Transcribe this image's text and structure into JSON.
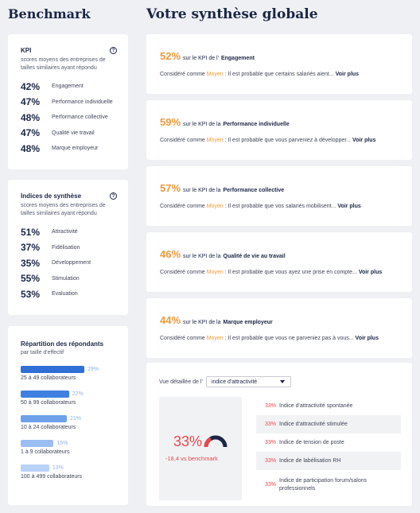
{
  "headings": {
    "left": "Benchmark",
    "right": "Votre synthèse globale"
  },
  "kpi_card": {
    "title": "KPI",
    "help": "?",
    "subtitle": "scores moyens des entreprises de tailles similaires ayant répondu",
    "items": [
      {
        "pct": "42%",
        "label": "Engagement"
      },
      {
        "pct": "47%",
        "label": "Performance individuelle"
      },
      {
        "pct": "48%",
        "label": "Performance collective"
      },
      {
        "pct": "47%",
        "label": "Qualité vie travail"
      },
      {
        "pct": "48%",
        "label": "Marque employeur"
      }
    ]
  },
  "indices_card": {
    "title": "Indices de synthèse",
    "help": "?",
    "subtitle": "scores moyens des entreprises de tailles similaires ayant répondu",
    "items": [
      {
        "pct": "51%",
        "label": "Attractivité"
      },
      {
        "pct": "37%",
        "label": "Fidélisation"
      },
      {
        "pct": "35%",
        "label": "Développement"
      },
      {
        "pct": "55%",
        "label": "Stimulation"
      },
      {
        "pct": "53%",
        "label": "Evaluation"
      }
    ]
  },
  "respondents": {
    "title": "Répartition des répondants",
    "subtitle": "par taille d'effectif",
    "items": [
      {
        "pct": "29%",
        "value": 29,
        "label": "25 à 49 collaborateurs",
        "color": "#2f6fd6"
      },
      {
        "pct": "22%",
        "value": 22,
        "label": "50 à 99 collaborateurs",
        "color": "#3f80e0"
      },
      {
        "pct": "21%",
        "value": 21,
        "label": "10 à 24 collaborateurs",
        "color": "#6fa1ea"
      },
      {
        "pct": "15%",
        "value": 15,
        "label": "1 à 9 collaborateurs",
        "color": "#9bbef2"
      },
      {
        "pct": "13%",
        "value": 13,
        "label": "100 à 499 collaborateurs",
        "color": "#b9d2f7"
      }
    ]
  },
  "summaries": [
    {
      "pct": "52%",
      "prefix": "sur le KPI de l'",
      "kpi": "Engagement",
      "considered": "Considéré comme ",
      "level": "Moyen",
      "text": " : Il est probable que certains salariés aient... ",
      "more": "Voir plus"
    },
    {
      "pct": "59%",
      "prefix": "sur le KPI de la",
      "kpi": "Performance individuelle",
      "considered": "Considéré comme ",
      "level": "Moyen",
      "text": " : Il est probable que vous parveniez à développer... ",
      "more": "Voir plus"
    },
    {
      "pct": "57%",
      "prefix": "sur le KPI de la",
      "kpi": "Performance collective",
      "considered": "Considéré comme ",
      "level": "Moyen",
      "text": " : Il est probable que vos salariés mobilisent... ",
      "more": "Voir plus"
    },
    {
      "pct": "46%",
      "prefix": "sur le KPI de la",
      "kpi": "Qualité de vie au travail",
      "considered": "Considéré comme ",
      "level": "Moyen",
      "text": " : Il est probable que vous ayez une prise en compte... ",
      "more": "Voir plus"
    },
    {
      "pct": "44%",
      "prefix": "sur le KPI de la",
      "kpi": "Marque employeur",
      "considered": "Considéré comme ",
      "level": "Moyen",
      "text": " : Il est probable que vous ne parveniez pas à vous... ",
      "more": "Voir plus"
    }
  ],
  "detail": {
    "label": "Vue détaillée de l'",
    "select_value": "indice d'attractivité",
    "gauge_pct": "33%",
    "gauge_value": 33,
    "gauge_sub": "-18,4 vs benchmark",
    "items": [
      {
        "pct": "33%",
        "label": "Indice d'attractivité spontanée"
      },
      {
        "pct": "33%",
        "label": "Indice d'attractivité stimulée"
      },
      {
        "pct": "33%",
        "label": "Indice de tension de poste"
      },
      {
        "pct": "33%",
        "label": "Indice de labélisation RH"
      },
      {
        "pct": "33%",
        "label": "Indice de participation forum/salons professionnels"
      }
    ]
  }
}
